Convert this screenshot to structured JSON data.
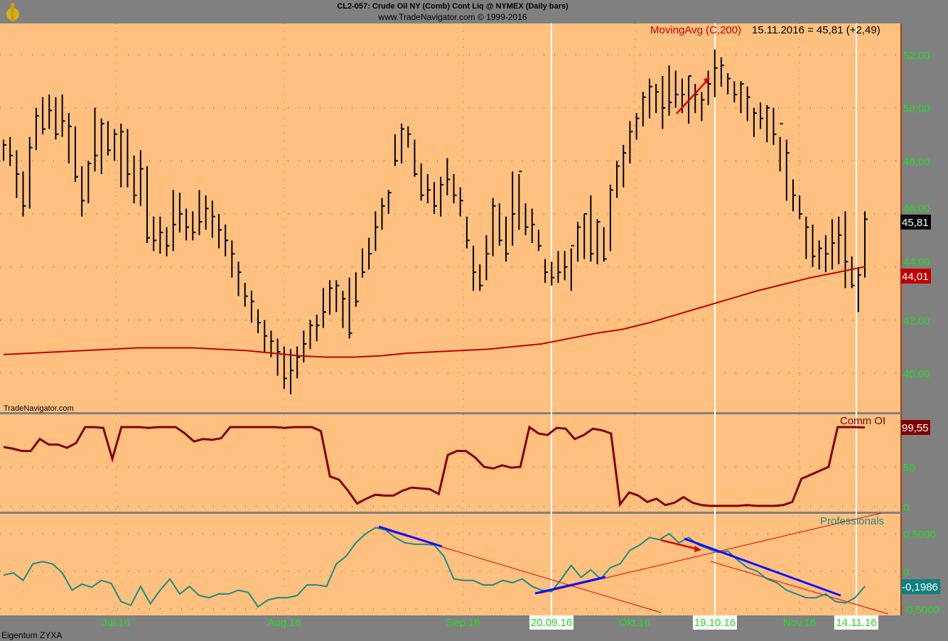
{
  "header": {
    "title": "CL2-057:  Crude Oil NY (Comb) Cont Liq @ NYMEX  (Daily bars)",
    "subtitle": "www.TradeNavigator.com © 1999-2016"
  },
  "footer": {
    "watermark": "TradeNavigator.com",
    "owner": "Eigentum ZYXA"
  },
  "colors": {
    "background": "#ffc080",
    "frame": "#808080",
    "ma": "#c00000",
    "comm": "#800000",
    "prof": "#1a8a80",
    "trend": "#1010ff",
    "axis_text": "#22dd22"
  },
  "chart_data": [
    {
      "type": "ohlc",
      "title": "",
      "ylim": [
        39,
        53
      ],
      "yticks": [
        "52,00",
        "50,00",
        "48,00",
        "46,00",
        "44,00",
        "42,00",
        "40,00"
      ],
      "last_price_label": "45,81",
      "ma_label_value": "44,01",
      "legend": "MovingAvg (C,200)",
      "legend_value": "15.11.2016 = 45,81 (+2,49)",
      "bars": [
        [
          48.8,
          48.0,
          48.6
        ],
        [
          48.9,
          47.8,
          48.2
        ],
        [
          48.4,
          46.6,
          47.5
        ],
        [
          47.6,
          45.9,
          46.3
        ],
        [
          48.9,
          46.2,
          48.5
        ],
        [
          50.0,
          48.4,
          49.7
        ],
        [
          50.4,
          49.0,
          49.2
        ],
        [
          50.5,
          49.2,
          49.9
        ],
        [
          50.4,
          48.8,
          49.0
        ],
        [
          50.5,
          48.9,
          49.5
        ],
        [
          49.8,
          47.9,
          49.3
        ],
        [
          49.3,
          47.2,
          47.4
        ],
        [
          47.8,
          45.9,
          46.5
        ],
        [
          48.0,
          46.4,
          47.9
        ],
        [
          50.0,
          47.6,
          48.2
        ],
        [
          49.6,
          47.5,
          49.4
        ],
        [
          49.5,
          48.2,
          48.4
        ],
        [
          49.2,
          48.0,
          49.0
        ],
        [
          49.4,
          47.0,
          49.1
        ],
        [
          49.2,
          47.0,
          47.5
        ],
        [
          48.2,
          46.4,
          46.7
        ],
        [
          48.4,
          46.3,
          47.7
        ],
        [
          47.8,
          44.9,
          45.1
        ],
        [
          45.9,
          44.6,
          45.0
        ],
        [
          45.9,
          44.5,
          45.3
        ],
        [
          45.5,
          44.4,
          44.8
        ],
        [
          46.9,
          44.6,
          45.6
        ],
        [
          46.8,
          45.3,
          46.0
        ],
        [
          46.2,
          45.0,
          45.5
        ],
        [
          46.1,
          45.0,
          45.3
        ],
        [
          46.9,
          45.2,
          45.7
        ],
        [
          46.7,
          45.4,
          46.2
        ],
        [
          46.5,
          45.1,
          45.9
        ],
        [
          46.0,
          44.7,
          45.4
        ],
        [
          45.6,
          44.4,
          45.0
        ],
        [
          45.0,
          43.6,
          44.5
        ],
        [
          44.2,
          42.9,
          43.8
        ],
        [
          43.4,
          42.5,
          42.9
        ],
        [
          43.1,
          41.9,
          42.7
        ],
        [
          42.4,
          41.5,
          41.9
        ],
        [
          42.0,
          40.8,
          41.4
        ],
        [
          41.6,
          40.6,
          41.2
        ],
        [
          41.3,
          39.9,
          40.8
        ],
        [
          41.0,
          39.4,
          39.8
        ],
        [
          40.9,
          39.2,
          40.1
        ],
        [
          41.0,
          39.8,
          40.6
        ],
        [
          41.6,
          40.4,
          41.1
        ],
        [
          42.0,
          40.9,
          41.8
        ],
        [
          42.2,
          41.2,
          41.8
        ],
        [
          43.2,
          41.7,
          42.3
        ],
        [
          43.5,
          42.2,
          43.2
        ],
        [
          43.5,
          42.3,
          43.3
        ],
        [
          43.1,
          41.7,
          42.8
        ],
        [
          43.6,
          41.3,
          41.5
        ],
        [
          43.8,
          42.5,
          42.7
        ],
        [
          44.7,
          43.6,
          43.8
        ],
        [
          45.1,
          43.9,
          44.5
        ],
        [
          46.1,
          44.6,
          45.5
        ],
        [
          46.6,
          45.4,
          46.3
        ],
        [
          46.9,
          46.0,
          46.8
        ],
        [
          49.0,
          47.8,
          48.0
        ],
        [
          49.4,
          47.9,
          49.2
        ],
        [
          49.3,
          48.5,
          49.0
        ],
        [
          48.8,
          47.4,
          47.5
        ],
        [
          47.9,
          46.5,
          46.7
        ],
        [
          47.5,
          46.4,
          46.9
        ],
        [
          47.2,
          46.0,
          46.3
        ],
        [
          47.4,
          45.9,
          47.1
        ],
        [
          48.1,
          46.7,
          47.3
        ],
        [
          47.5,
          46.4,
          46.7
        ],
        [
          47.0,
          45.9,
          46.5
        ],
        [
          45.9,
          44.7,
          45.0
        ],
        [
          44.8,
          43.1,
          43.8
        ],
        [
          44.1,
          43.1,
          43.3
        ],
        [
          45.2,
          43.5,
          44.5
        ],
        [
          46.6,
          44.4,
          46.3
        ],
        [
          46.4,
          44.8,
          45.0
        ],
        [
          45.9,
          44.2,
          44.5
        ],
        [
          47.6,
          44.8,
          46.0
        ],
        [
          47.5,
          45.4,
          47.6
        ],
        [
          46.4,
          45.2,
          45.5
        ],
        [
          46.2,
          44.9,
          45.6
        ],
        [
          45.4,
          44.6,
          44.8
        ],
        [
          44.3,
          43.4,
          43.8
        ],
        [
          44.2,
          43.3,
          43.6
        ],
        [
          44.6,
          43.4,
          43.8
        ],
        [
          44.6,
          43.5,
          44.0
        ],
        [
          44.7,
          43.1,
          44.8
        ],
        [
          45.7,
          44.2,
          45.5
        ],
        [
          46.0,
          44.3,
          46.0
        ],
        [
          46.7,
          44.2,
          44.5
        ],
        [
          45.8,
          44.1,
          45.7
        ],
        [
          45.5,
          44.2,
          44.3
        ],
        [
          47.1,
          44.6,
          46.9
        ],
        [
          48.0,
          46.6,
          47.8
        ],
        [
          48.6,
          47.0,
          48.3
        ],
        [
          49.5,
          47.9,
          49.1
        ],
        [
          49.8,
          48.8,
          49.6
        ],
        [
          50.6,
          49.3,
          50.4
        ],
        [
          51.1,
          49.6,
          50.8
        ],
        [
          50.9,
          49.8,
          50.6
        ],
        [
          51.2,
          49.2,
          50.0
        ],
        [
          51.6,
          49.7,
          50.2
        ],
        [
          51.4,
          50.0,
          50.5
        ],
        [
          51.1,
          49.8,
          50.5
        ],
        [
          51.2,
          49.4,
          51.2
        ],
        [
          50.9,
          49.8,
          50.5
        ],
        [
          50.6,
          49.5,
          50.3
        ],
        [
          51.4,
          50.1,
          50.9
        ],
        [
          52.2,
          50.4,
          51.5
        ],
        [
          51.9,
          50.8,
          51.6
        ],
        [
          51.3,
          50.5,
          51.1
        ],
        [
          51.0,
          50.2,
          50.5
        ],
        [
          51.0,
          49.8,
          50.9
        ],
        [
          50.8,
          49.5,
          50.4
        ],
        [
          50.0,
          48.9,
          49.8
        ],
        [
          50.2,
          49.2,
          49.6
        ],
        [
          50.1,
          48.7,
          50.0
        ],
        [
          50.0,
          48.6,
          49.0
        ],
        [
          48.9,
          47.6,
          49.4
        ],
        [
          48.8,
          46.5,
          48.3
        ],
        [
          47.3,
          46.1,
          46.7
        ],
        [
          46.7,
          45.8,
          46.0
        ],
        [
          45.9,
          44.3,
          45.5
        ],
        [
          45.6,
          44.0,
          44.4
        ],
        [
          45.0,
          43.9,
          44.7
        ],
        [
          45.2,
          43.8,
          44.5
        ],
        [
          45.8,
          43.9,
          44.9
        ],
        [
          45.9,
          44.1,
          45.2
        ],
        [
          46.1,
          43.2,
          44.2
        ],
        [
          44.4,
          43.2,
          43.3
        ],
        [
          44.0,
          42.3,
          43.7
        ],
        [
          46.1,
          43.6,
          45.8
        ]
      ],
      "ma": [
        40.7,
        40.75,
        40.8,
        40.85,
        40.9,
        40.95,
        40.95,
        40.95,
        40.9,
        40.85,
        40.75,
        40.65,
        40.6,
        40.6,
        40.65,
        40.75,
        40.8,
        40.85,
        40.9,
        41.0,
        41.1,
        41.3,
        41.5,
        41.65,
        41.9,
        42.2,
        42.5,
        42.8,
        43.1,
        43.35,
        43.6,
        43.8,
        44.01
      ],
      "xlabels": [
        "Jul.16",
        "Aug.16",
        "Sep.16",
        "20.09.16",
        "Okt.16",
        "19.10.16",
        "Nov.16",
        "14.11.16"
      ]
    },
    {
      "type": "line",
      "title": "Comm OI",
      "ylim": [
        0,
        100
      ],
      "yticks": [
        "50",
        "0"
      ],
      "last_value_label": "99,55",
      "values": [
        75,
        73,
        70,
        70,
        85,
        78,
        78,
        74,
        80,
        100,
        100,
        99,
        60,
        100,
        100,
        100,
        99,
        100,
        100,
        100,
        92,
        82,
        85,
        84,
        86,
        100,
        100,
        100,
        100,
        100,
        100,
        99,
        100,
        100,
        100,
        95,
        38,
        34,
        20,
        4,
        10,
        15,
        14,
        14,
        20,
        24,
        23,
        22,
        16,
        65,
        70,
        70,
        62,
        50,
        48,
        52,
        49,
        50,
        100,
        92,
        90,
        99,
        98,
        85,
        90,
        98,
        96,
        92,
        3,
        18,
        14,
        6,
        10,
        2,
        5,
        12,
        5,
        2,
        1,
        1,
        1,
        1,
        2,
        1,
        1,
        1,
        2,
        6,
        35,
        40,
        45,
        50,
        100,
        100,
        100,
        99.55
      ]
    },
    {
      "type": "line",
      "title": "Professionals",
      "ylim": [
        -0.5,
        0.5
      ],
      "yticks": [
        "0,5000",
        "0",
        "-0,5000"
      ],
      "last_value_label": "-0,1986",
      "values": [
        -0.05,
        -0.02,
        -0.12,
        0.1,
        0.13,
        0.1,
        -0.02,
        -0.25,
        -0.17,
        -0.21,
        -0.12,
        -0.16,
        -0.4,
        -0.45,
        -0.2,
        -0.43,
        -0.25,
        -0.1,
        -0.3,
        -0.2,
        -0.32,
        -0.35,
        -0.3,
        -0.3,
        -0.25,
        -0.28,
        -0.47,
        -0.38,
        -0.35,
        -0.35,
        -0.32,
        -0.18,
        -0.18,
        -0.2,
        0.1,
        0.2,
        0.38,
        0.5,
        0.58,
        0.55,
        0.45,
        0.38,
        0.36,
        0.36,
        0.35,
        0.2,
        -0.1,
        -0.12,
        -0.12,
        -0.18,
        -0.18,
        -0.12,
        -0.15,
        -0.1,
        -0.2,
        -0.25,
        -0.27,
        -0.1,
        0.08,
        -0.08,
        0.02,
        -0.1,
        0.05,
        0.1,
        0.28,
        0.35,
        0.45,
        0.42,
        0.5,
        0.38,
        0.45,
        0.35,
        0.3,
        0.25,
        0.27,
        0.15,
        0.05,
        0.0,
        -0.1,
        -0.15,
        -0.25,
        -0.3,
        -0.35,
        -0.35,
        -0.3,
        -0.4,
        -0.42,
        -0.35,
        -0.1986
      ]
    }
  ]
}
